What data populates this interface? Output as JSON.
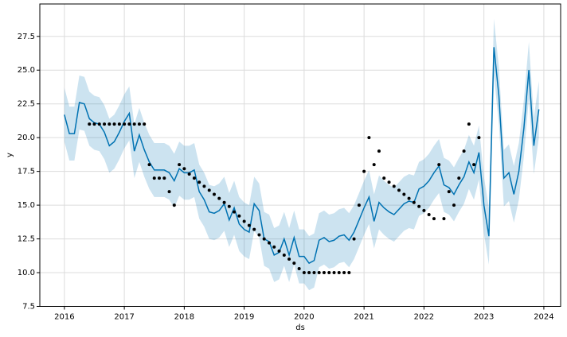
{
  "chart_data": {
    "type": "line",
    "x_label": "ds",
    "y_label": "y",
    "x": [
      2016.0,
      2016.083,
      2016.167,
      2016.25,
      2016.333,
      2016.417,
      2016.5,
      2016.583,
      2016.667,
      2016.75,
      2016.833,
      2016.917,
      2017.0,
      2017.083,
      2017.167,
      2017.25,
      2017.333,
      2017.417,
      2017.5,
      2017.583,
      2017.667,
      2017.75,
      2017.833,
      2017.917,
      2018.0,
      2018.083,
      2018.167,
      2018.25,
      2018.333,
      2018.417,
      2018.5,
      2018.583,
      2018.667,
      2018.75,
      2018.833,
      2018.917,
      2019.0,
      2019.083,
      2019.167,
      2019.25,
      2019.333,
      2019.417,
      2019.5,
      2019.583,
      2019.667,
      2019.75,
      2019.833,
      2019.917,
      2020.0,
      2020.083,
      2020.167,
      2020.25,
      2020.333,
      2020.417,
      2020.5,
      2020.583,
      2020.667,
      2020.75,
      2020.833,
      2020.917,
      2021.0,
      2021.083,
      2021.167,
      2021.25,
      2021.333,
      2021.417,
      2021.5,
      2021.583,
      2021.667,
      2021.75,
      2021.833,
      2021.917,
      2022.0,
      2022.083,
      2022.167,
      2022.25,
      2022.333,
      2022.417,
      2022.5,
      2022.583,
      2022.667,
      2022.75,
      2022.833,
      2022.917,
      2023.0,
      2023.083,
      2023.167,
      2023.25,
      2023.333,
      2023.417,
      2023.5,
      2023.583,
      2023.667,
      2023.75,
      2023.833,
      2023.917
    ],
    "series": [
      {
        "color": "#0072B2",
        "values": [
          21.7,
          20.3,
          20.3,
          22.6,
          22.5,
          21.4,
          21.1,
          21.0,
          20.4,
          19.4,
          19.7,
          20.4,
          21.2,
          21.8,
          19.0,
          20.2,
          19.1,
          18.2,
          17.6,
          17.6,
          17.6,
          17.4,
          16.8,
          17.7,
          17.4,
          17.4,
          17.6,
          16.0,
          15.4,
          14.5,
          14.4,
          14.6,
          15.1,
          13.9,
          14.8,
          13.6,
          13.2,
          13.0,
          15.1,
          14.6,
          12.5,
          12.3,
          11.3,
          11.5,
          12.5,
          11.3,
          12.6,
          11.2,
          11.2,
          10.7,
          10.9,
          12.4,
          12.6,
          12.3,
          12.4,
          12.7,
          12.8,
          12.4,
          13.0,
          13.9,
          14.8,
          15.6,
          13.8,
          15.2,
          14.8,
          14.5,
          14.3,
          14.7,
          15.1,
          15.3,
          15.2,
          16.2,
          16.4,
          16.8,
          17.4,
          17.9,
          16.5,
          16.3,
          15.8,
          16.5,
          17.1,
          18.2,
          17.4,
          18.9,
          15.0,
          12.7,
          26.7,
          23.1,
          17.0,
          17.4,
          15.8,
          17.5,
          20.7,
          25.0,
          19.4,
          22.1
        ]
      }
    ],
    "band": {
      "color": "#0072B2",
      "upper": [
        23.7,
        22.3,
        22.3,
        24.6,
        24.5,
        23.4,
        23.1,
        23.0,
        22.4,
        21.4,
        21.7,
        22.4,
        23.2,
        23.8,
        21.0,
        22.2,
        21.1,
        20.2,
        19.6,
        19.6,
        19.6,
        19.4,
        18.8,
        19.7,
        19.4,
        19.4,
        19.6,
        18.0,
        17.4,
        16.5,
        16.4,
        16.6,
        17.1,
        15.9,
        16.8,
        15.6,
        15.2,
        15.0,
        17.1,
        16.6,
        14.5,
        14.3,
        13.3,
        13.5,
        14.5,
        13.3,
        14.6,
        13.2,
        13.2,
        12.7,
        12.9,
        14.4,
        14.6,
        14.3,
        14.4,
        14.7,
        14.8,
        14.4,
        15.0,
        15.9,
        16.8,
        17.6,
        15.8,
        17.2,
        16.8,
        16.5,
        16.3,
        16.7,
        17.1,
        17.3,
        17.2,
        18.2,
        18.4,
        18.8,
        19.4,
        19.9,
        18.5,
        18.3,
        17.8,
        18.5,
        19.1,
        20.2,
        19.4,
        20.9,
        17.1,
        14.8,
        28.8,
        25.2,
        19.1,
        19.5,
        17.9,
        19.6,
        22.8,
        27.1,
        21.5,
        24.2
      ],
      "lower": [
        19.7,
        18.3,
        18.3,
        20.6,
        20.5,
        19.4,
        19.1,
        19.0,
        18.4,
        17.4,
        17.7,
        18.4,
        19.2,
        19.8,
        17.0,
        18.2,
        17.1,
        16.2,
        15.6,
        15.6,
        15.6,
        15.4,
        14.8,
        15.7,
        15.4,
        15.4,
        15.6,
        14.0,
        13.4,
        12.5,
        12.4,
        12.6,
        13.1,
        11.9,
        12.8,
        11.6,
        11.2,
        11.0,
        13.1,
        12.6,
        10.5,
        10.3,
        9.3,
        9.5,
        10.5,
        9.3,
        10.6,
        9.2,
        9.2,
        8.7,
        8.9,
        10.4,
        10.6,
        10.3,
        10.4,
        10.7,
        10.8,
        10.4,
        11.0,
        11.9,
        12.8,
        13.6,
        11.8,
        13.2,
        12.8,
        12.5,
        12.3,
        12.7,
        13.1,
        13.3,
        13.2,
        14.2,
        14.4,
        14.8,
        15.4,
        15.9,
        14.5,
        14.3,
        13.8,
        14.5,
        15.1,
        16.2,
        15.4,
        16.9,
        12.9,
        10.6,
        24.6,
        21.0,
        14.9,
        15.3,
        13.7,
        15.4,
        18.6,
        22.9,
        17.3,
        20.0
      ]
    },
    "points": {
      "color": "#000000",
      "values": [
        null,
        null,
        null,
        null,
        null,
        21,
        21,
        21,
        21,
        21,
        21,
        21,
        21,
        21,
        21,
        21,
        21,
        18,
        17,
        17,
        17,
        16,
        15,
        18,
        17.7,
        17.3,
        17.0,
        16.7,
        16.4,
        16.1,
        15.8,
        15.5,
        15.2,
        14.9,
        14.5,
        14.2,
        13.8,
        13.5,
        13.2,
        12.8,
        12.5,
        12.2,
        11.9,
        11.6,
        11.3,
        11.0,
        10.7,
        10.3,
        10,
        10,
        10,
        10,
        10,
        10,
        10,
        10,
        10,
        10,
        12.5,
        15,
        17.5,
        20,
        18,
        19,
        17,
        16.7,
        16.4,
        16.1,
        15.8,
        15.5,
        15.2,
        14.9,
        14.6,
        14.3,
        14.0,
        18,
        14,
        16,
        15,
        17,
        19,
        21,
        18,
        20,
        null,
        null,
        null,
        null,
        null,
        null,
        null,
        null,
        null,
        null,
        null,
        null
      ]
    },
    "xlim": [
      2015.59,
      2024.28
    ],
    "ylim": [
      7.5,
      29.9
    ],
    "xticks": [
      2016,
      2017,
      2018,
      2019,
      2020,
      2021,
      2022,
      2023,
      2024
    ],
    "yticks": [
      7.5,
      {
        "value": 10,
        "label": "10.0"
      },
      12.5,
      {
        "value": 15,
        "label": "15.0"
      },
      17.5,
      {
        "value": 20,
        "label": "20.0"
      },
      22.5,
      {
        "value": 25,
        "label": "25.0"
      },
      27.5
    ],
    "grid": true
  }
}
